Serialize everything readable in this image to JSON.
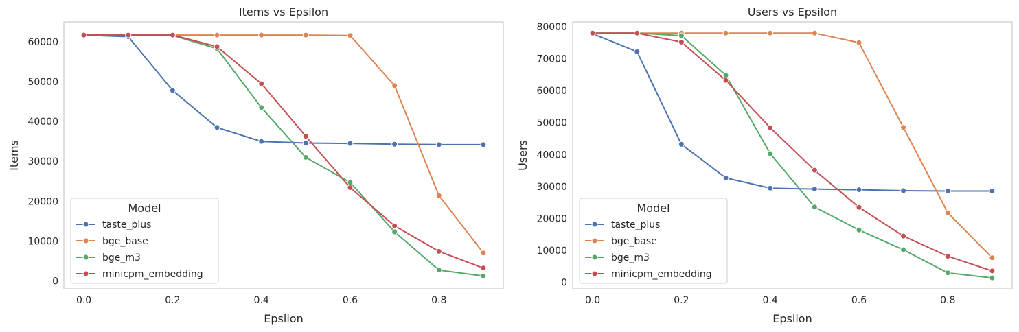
{
  "chart_data": [
    {
      "type": "line",
      "title": "Items vs Epsilon",
      "xlabel": "Epsilon",
      "ylabel": "Items",
      "xlim": [
        -0.045,
        0.945
      ],
      "ylim": [
        -2000,
        65000
      ],
      "xticks": [
        0.0,
        0.2,
        0.4,
        0.6,
        0.8
      ],
      "xtick_labels": [
        "0.0",
        "0.2",
        "0.4",
        "0.6",
        "0.8"
      ],
      "yticks": [
        0,
        10000,
        20000,
        30000,
        40000,
        50000,
        60000
      ],
      "ytick_labels": [
        "0",
        "10000",
        "20000",
        "30000",
        "40000",
        "50000",
        "60000"
      ],
      "grid": true,
      "legend": {
        "title": "Model",
        "placement": "lower-left"
      },
      "x": [
        0.0,
        0.1,
        0.2,
        0.3,
        0.4,
        0.5,
        0.6,
        0.7,
        0.8,
        0.9
      ],
      "series": [
        {
          "name": "taste_plus",
          "color": "#4c72b0",
          "values": [
            61700,
            61300,
            47800,
            38500,
            35000,
            34600,
            34500,
            34300,
            34200,
            34200
          ]
        },
        {
          "name": "bge_base",
          "color": "#dd8452",
          "values": [
            61700,
            61700,
            61700,
            61700,
            61700,
            61700,
            61600,
            49000,
            21400,
            7000
          ]
        },
        {
          "name": "bge_m3",
          "color": "#55a868",
          "values": [
            61700,
            61700,
            61600,
            58300,
            43500,
            31000,
            24700,
            12300,
            2700,
            1200
          ]
        },
        {
          "name": "minicpm_embedding",
          "color": "#c44e52",
          "values": [
            61700,
            61700,
            61700,
            58800,
            49500,
            36300,
            23400,
            13800,
            7400,
            3200
          ]
        }
      ]
    },
    {
      "type": "line",
      "title": "Users vs Epsilon",
      "xlabel": "Epsilon",
      "ylabel": "Users",
      "xlim": [
        -0.045,
        0.945
      ],
      "ylim": [
        -2000,
        81500
      ],
      "xticks": [
        0.0,
        0.2,
        0.4,
        0.6,
        0.8
      ],
      "xtick_labels": [
        "0.0",
        "0.2",
        "0.4",
        "0.6",
        "0.8"
      ],
      "yticks": [
        0,
        10000,
        20000,
        30000,
        40000,
        50000,
        60000,
        70000,
        80000
      ],
      "ytick_labels": [
        "0",
        "10000",
        "20000",
        "30000",
        "40000",
        "50000",
        "60000",
        "70000",
        "80000"
      ],
      "grid": true,
      "legend": {
        "title": "Model",
        "placement": "lower-left"
      },
      "x": [
        0.0,
        0.1,
        0.2,
        0.3,
        0.4,
        0.5,
        0.6,
        0.7,
        0.8,
        0.9
      ],
      "series": [
        {
          "name": "taste_plus",
          "color": "#4c72b0",
          "values": [
            77800,
            72200,
            43200,
            32700,
            29500,
            29200,
            29000,
            28700,
            28600,
            28600
          ]
        },
        {
          "name": "bge_base",
          "color": "#dd8452",
          "values": [
            78000,
            78000,
            78000,
            78000,
            78000,
            78000,
            75000,
            48500,
            21800,
            7700
          ]
        },
        {
          "name": "bge_m3",
          "color": "#55a868",
          "values": [
            78000,
            78000,
            77200,
            64800,
            40300,
            23600,
            16400,
            10200,
            3000,
            1400
          ]
        },
        {
          "name": "minicpm_embedding",
          "color": "#c44e52",
          "values": [
            78000,
            78000,
            75200,
            63200,
            48400,
            35100,
            23500,
            14500,
            8200,
            3600
          ]
        }
      ]
    }
  ]
}
